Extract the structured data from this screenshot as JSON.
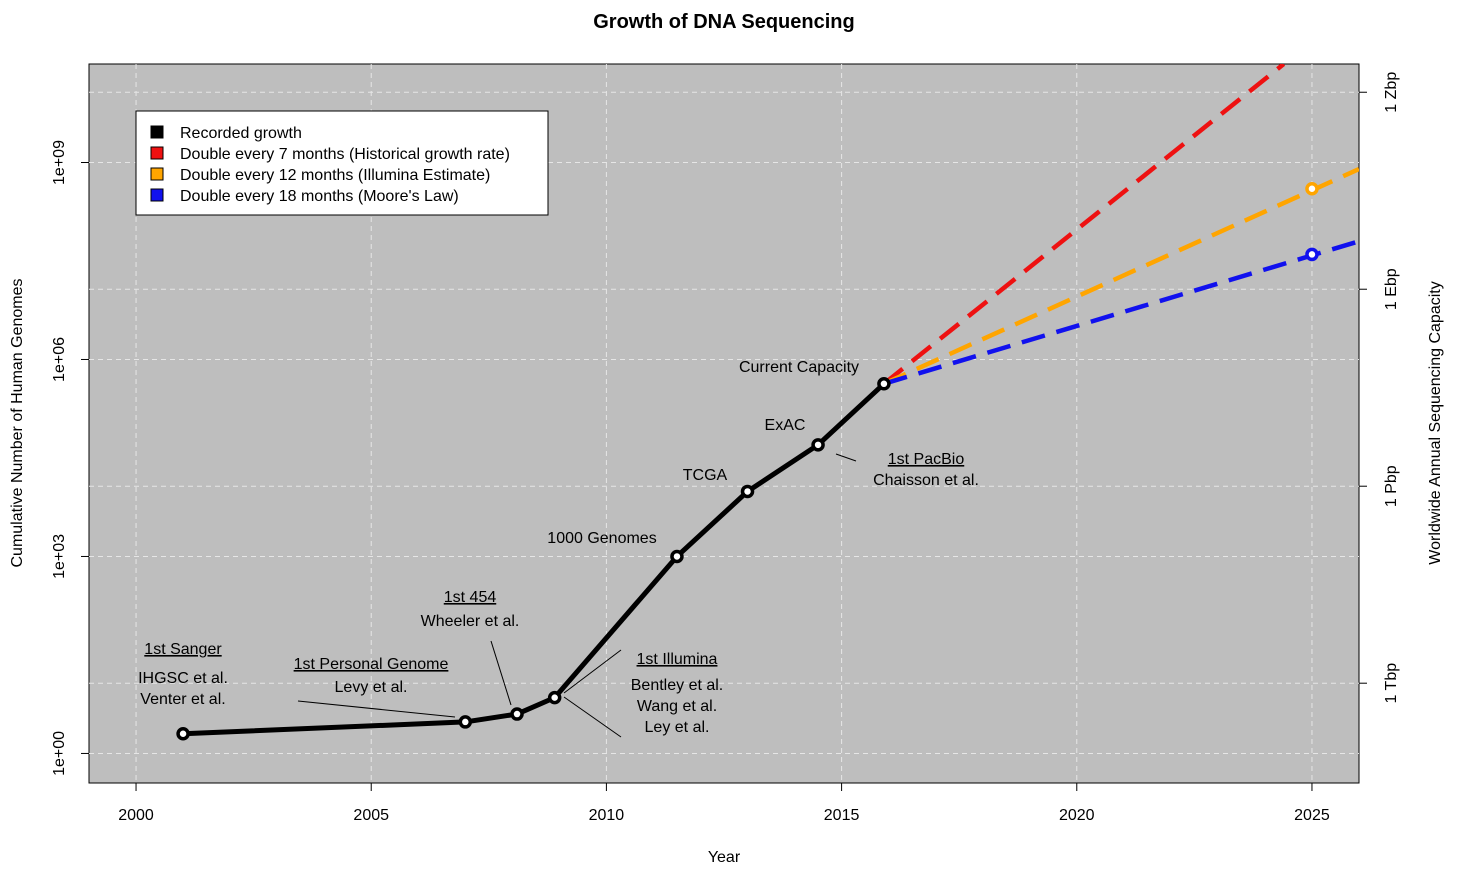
{
  "chart_data": {
    "type": "line",
    "title": "Growth of DNA Sequencing",
    "xlabel": "Year",
    "ylabel": "Cumulative Number of Human Genomes",
    "y2label": "Worldwide Annual Sequencing Capacity",
    "xlim": [
      1999,
      2026
    ],
    "ylim_log10": [
      -0.45,
      10.5
    ],
    "grid": true,
    "x_ticks": [
      2000,
      2005,
      2010,
      2015,
      2020,
      2025
    ],
    "x_tick_labels": [
      "2000",
      "2005",
      "2010",
      "2015",
      "2020",
      "2025"
    ],
    "y_ticks_log10": [
      0,
      3,
      6,
      9
    ],
    "y_tick_labels": [
      "1e+00",
      "1e+03",
      "1e+06",
      "1e+09"
    ],
    "y2_ticks_log10": [
      1.07,
      4.07,
      7.07,
      10.07
    ],
    "y2_tick_labels": [
      "1 Tbp",
      "1 Pbp",
      "1 Ebp",
      "1 Zbp"
    ],
    "series": [
      {
        "name": "Recorded growth",
        "color": "#000000",
        "style": "solid",
        "x": [
          2001.0,
          2007.0,
          2008.1,
          2008.9,
          2011.5,
          2013.0,
          2014.5,
          2015.9
        ],
        "y_log10": [
          0.3,
          0.48,
          0.6,
          0.85,
          3.0,
          3.99,
          4.7,
          5.63
        ]
      },
      {
        "name": "Double every 7 months (Historical growth rate)",
        "color": "#ee1111",
        "style": "dashed",
        "x": [
          2015.9,
          2024.4
        ],
        "y_log10": [
          5.63,
          10.5
        ]
      },
      {
        "name": "Double every 12 months (Illumina Estimate)",
        "color": "#ffa500",
        "style": "dashed",
        "x": [
          2015.9,
          2026.0
        ],
        "y_log10": [
          5.63,
          8.9
        ],
        "marker": {
          "x": 2025,
          "y_log10": 8.6
        }
      },
      {
        "name": "Double every 18 months (Moore's Law)",
        "color": "#1111ee",
        "style": "dashed",
        "x": [
          2015.9,
          2026.0
        ],
        "y_log10": [
          5.63,
          7.8
        ],
        "marker": {
          "x": 2025,
          "y_log10": 7.6
        }
      }
    ],
    "legend": {
      "position": "top-left",
      "entries": [
        {
          "label": "Recorded growth",
          "color": "#000000"
        },
        {
          "label": "Double every 7 months (Historical growth rate)",
          "color": "#ee1111"
        },
        {
          "label": "Double every 12 months (Illumina Estimate)",
          "color": "#ffa500"
        },
        {
          "label": "Double every 18 months (Moore's Law)",
          "color": "#1111ee"
        }
      ]
    },
    "annotations": [
      {
        "text": "1st Sanger",
        "underline": true
      },
      {
        "text": "IHGSC et al."
      },
      {
        "text": "Venter et al."
      },
      {
        "text": "1st Personal Genome",
        "underline": true
      },
      {
        "text": "Levy et al."
      },
      {
        "text": "1st 454",
        "underline": true
      },
      {
        "text": "Wheeler et al."
      },
      {
        "text": "1st Illumina",
        "underline": true
      },
      {
        "text": "Bentley et al."
      },
      {
        "text": "Wang et al."
      },
      {
        "text": "Ley et al."
      },
      {
        "text": "1000 Genomes"
      },
      {
        "text": "TCGA"
      },
      {
        "text": "ExAC"
      },
      {
        "text": "1st PacBio",
        "underline": true
      },
      {
        "text": "Chaisson et al."
      },
      {
        "text": "Current Capacity"
      }
    ]
  }
}
